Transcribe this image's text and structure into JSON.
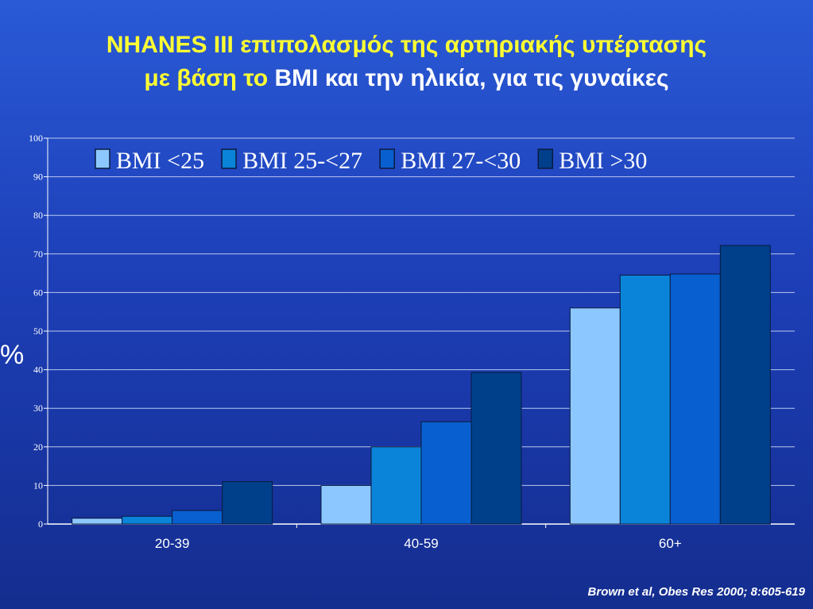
{
  "title": {
    "line1": "NHANES III επιπολασμός της αρτηριακής υπέρτασης",
    "line2_part1": "με βάση το",
    "line2_part2": " BMI και την ηλικία, για τις γυναίκες"
  },
  "y_unit_label": "%",
  "citation": "Brown et al, Obes Res 2000; 8:605-619",
  "colors": {
    "series": [
      "#8cc8ff",
      "#0a84d8",
      "#0860d0",
      "#003f8a"
    ],
    "grid": "#b9c7ee",
    "axis_text": "#ffffff"
  },
  "chart_data": {
    "type": "bar",
    "categories": [
      "20-39",
      "40-59",
      "60+"
    ],
    "series": [
      {
        "name": "BMI <25",
        "values": [
          1.5,
          10,
          56
        ]
      },
      {
        "name": "BMI 25-<27",
        "values": [
          2,
          20,
          64.5
        ]
      },
      {
        "name": "BMI 27-<30",
        "values": [
          3.5,
          26.5,
          64.8
        ]
      },
      {
        "name": "BMI >30",
        "values": [
          11,
          39.3,
          72.2
        ]
      }
    ],
    "ylim": [
      0,
      100
    ],
    "yticks": [
      0,
      10,
      20,
      30,
      40,
      50,
      60,
      70,
      80,
      90,
      100
    ],
    "grid": true,
    "legend": "top"
  }
}
